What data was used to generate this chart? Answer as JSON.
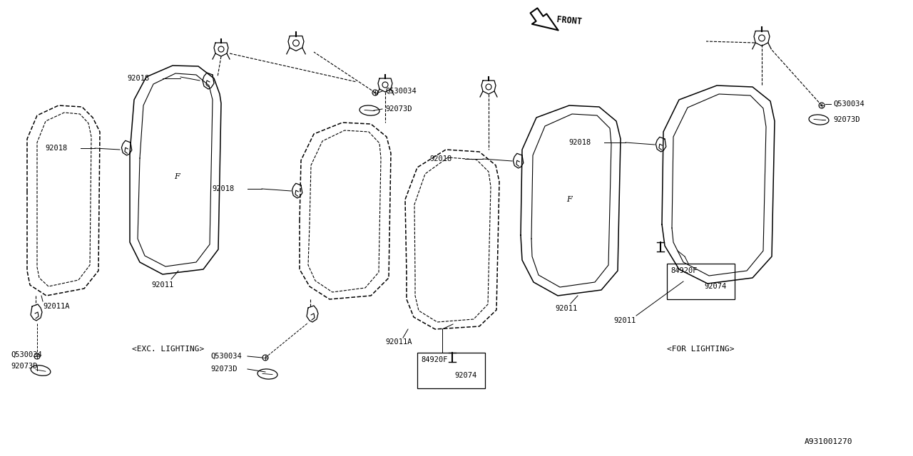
{
  "bg": "#ffffff",
  "lc": "#000000",
  "tc": "#000000",
  "fs": 7.5,
  "diagram_id": "A931001270",
  "exc_label": "<EXC. LIGHTING>",
  "for_label": "<FOR LIGHTING>",
  "front_label": "FRONT"
}
